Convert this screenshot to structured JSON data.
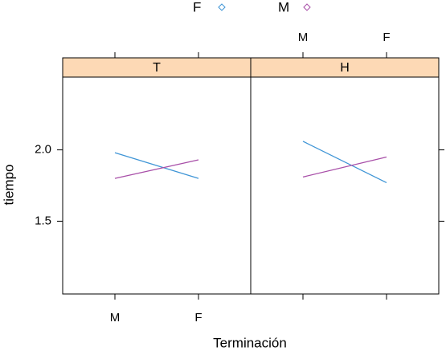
{
  "chart_data": {
    "type": "line",
    "xlabel": "Terminación",
    "ylabel": "tiempo",
    "categories": [
      "M",
      "F"
    ],
    "series": [
      {
        "name": "F",
        "color": "#3f95d6"
      },
      {
        "name": "M",
        "color": "#a84fa8"
      }
    ],
    "panels": [
      {
        "strip": "T",
        "series": [
          {
            "values": [
              1.98,
              1.8
            ]
          },
          {
            "values": [
              1.8,
              1.93
            ]
          }
        ]
      },
      {
        "strip": "H",
        "series": [
          {
            "values": [
              2.06,
              1.77
            ]
          },
          {
            "values": [
              1.81,
              1.95
            ]
          }
        ]
      }
    ],
    "ylim": [
      0.99,
      2.51
    ],
    "yticks": [
      1.5,
      {
        "value": 2,
        "label": "2.0"
      }
    ],
    "strip_color": "#fdd9b5"
  }
}
